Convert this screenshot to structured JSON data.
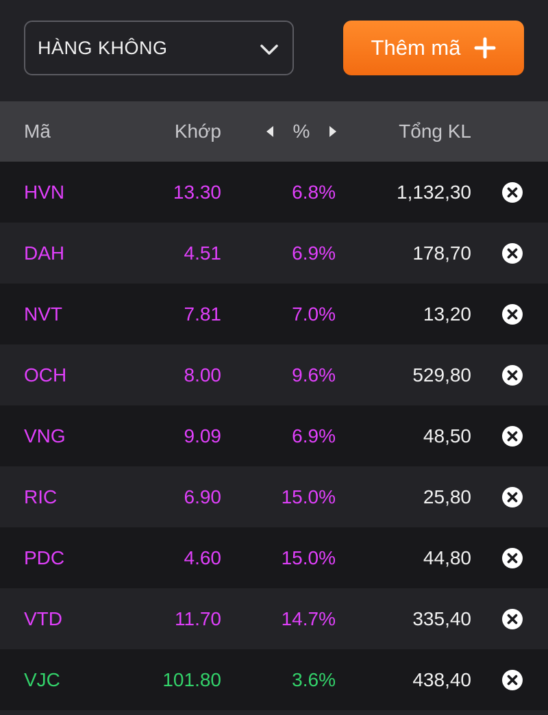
{
  "watchlist": {
    "selected": "HÀNG KHÔNG",
    "add_button_label": "Thêm mã"
  },
  "table": {
    "headers": {
      "code": "Mã",
      "match": "Khớp",
      "percent": "%",
      "volume": "Tổng KL"
    },
    "rows": [
      {
        "code": "HVN",
        "match": "13.30",
        "percent": "6.8%",
        "volume": "1,132,30",
        "trend": "ceiling"
      },
      {
        "code": "DAH",
        "match": "4.51",
        "percent": "6.9%",
        "volume": "178,70",
        "trend": "ceiling"
      },
      {
        "code": "NVT",
        "match": "7.81",
        "percent": "7.0%",
        "volume": "13,20",
        "trend": "ceiling"
      },
      {
        "code": "OCH",
        "match": "8.00",
        "percent": "9.6%",
        "volume": "529,80",
        "trend": "ceiling"
      },
      {
        "code": "VNG",
        "match": "9.09",
        "percent": "6.9%",
        "volume": "48,50",
        "trend": "ceiling"
      },
      {
        "code": "RIC",
        "match": "6.90",
        "percent": "15.0%",
        "volume": "25,80",
        "trend": "ceiling"
      },
      {
        "code": "PDC",
        "match": "4.60",
        "percent": "15.0%",
        "volume": "44,80",
        "trend": "ceiling"
      },
      {
        "code": "VTD",
        "match": "11.70",
        "percent": "14.7%",
        "volume": "335,40",
        "trend": "ceiling"
      },
      {
        "code": "VJC",
        "match": "101.80",
        "percent": "3.6%",
        "volume": "438,40",
        "trend": "up"
      }
    ]
  },
  "colors": {
    "ceiling": "#e040fb",
    "up": "#33d26a",
    "accent": "#f36c12"
  },
  "icons": {
    "dropdown": "chevron-down-icon",
    "add": "plus-icon",
    "remove": "close-circle-icon",
    "prev": "caret-left-icon",
    "next": "caret-right-icon"
  }
}
